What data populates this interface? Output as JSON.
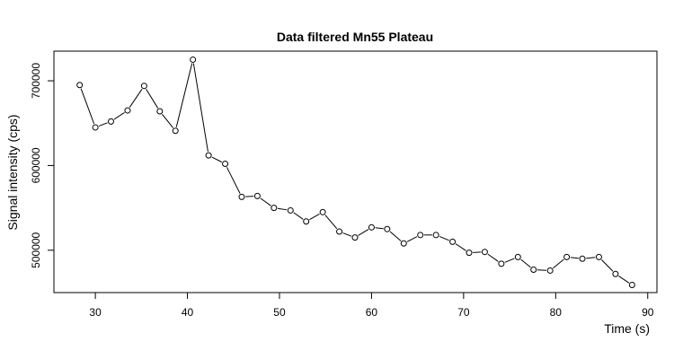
{
  "chart_data": {
    "type": "line",
    "title": "Data filtered Mn55 Plateau",
    "xlabel": "Time (s)",
    "ylabel": "Signal intensity (cps)",
    "xlim": [
      25.5,
      91
    ],
    "ylim": [
      450000,
      735000
    ],
    "xticks": [
      30,
      40,
      50,
      60,
      70,
      80,
      90
    ],
    "yticks": [
      500000,
      600000,
      700000
    ],
    "grid": false,
    "legend": "none",
    "marker": "open-circle",
    "series": [
      {
        "x": [
          28.3,
          30.0,
          31.7,
          33.5,
          35.3,
          37.0,
          38.7,
          40.6,
          42.3,
          44.1,
          45.9,
          47.6,
          49.4,
          51.2,
          52.9,
          54.7,
          56.5,
          58.2,
          60.0,
          61.7,
          63.5,
          65.3,
          67.0,
          68.8,
          70.6,
          72.3,
          74.1,
          75.9,
          77.6,
          79.4,
          81.2,
          82.9,
          84.7,
          86.5,
          88.3
        ],
        "y": [
          695000,
          645000,
          652000,
          665000,
          694000,
          664000,
          641000,
          725000,
          612000,
          602000,
          563000,
          564000,
          550000,
          547000,
          534000,
          545000,
          522000,
          515000,
          527000,
          525000,
          508000,
          518000,
          518000,
          510000,
          497000,
          498000,
          484000,
          492000,
          477000,
          476000,
          492000,
          490000,
          492000,
          472000,
          459000
        ]
      }
    ]
  }
}
